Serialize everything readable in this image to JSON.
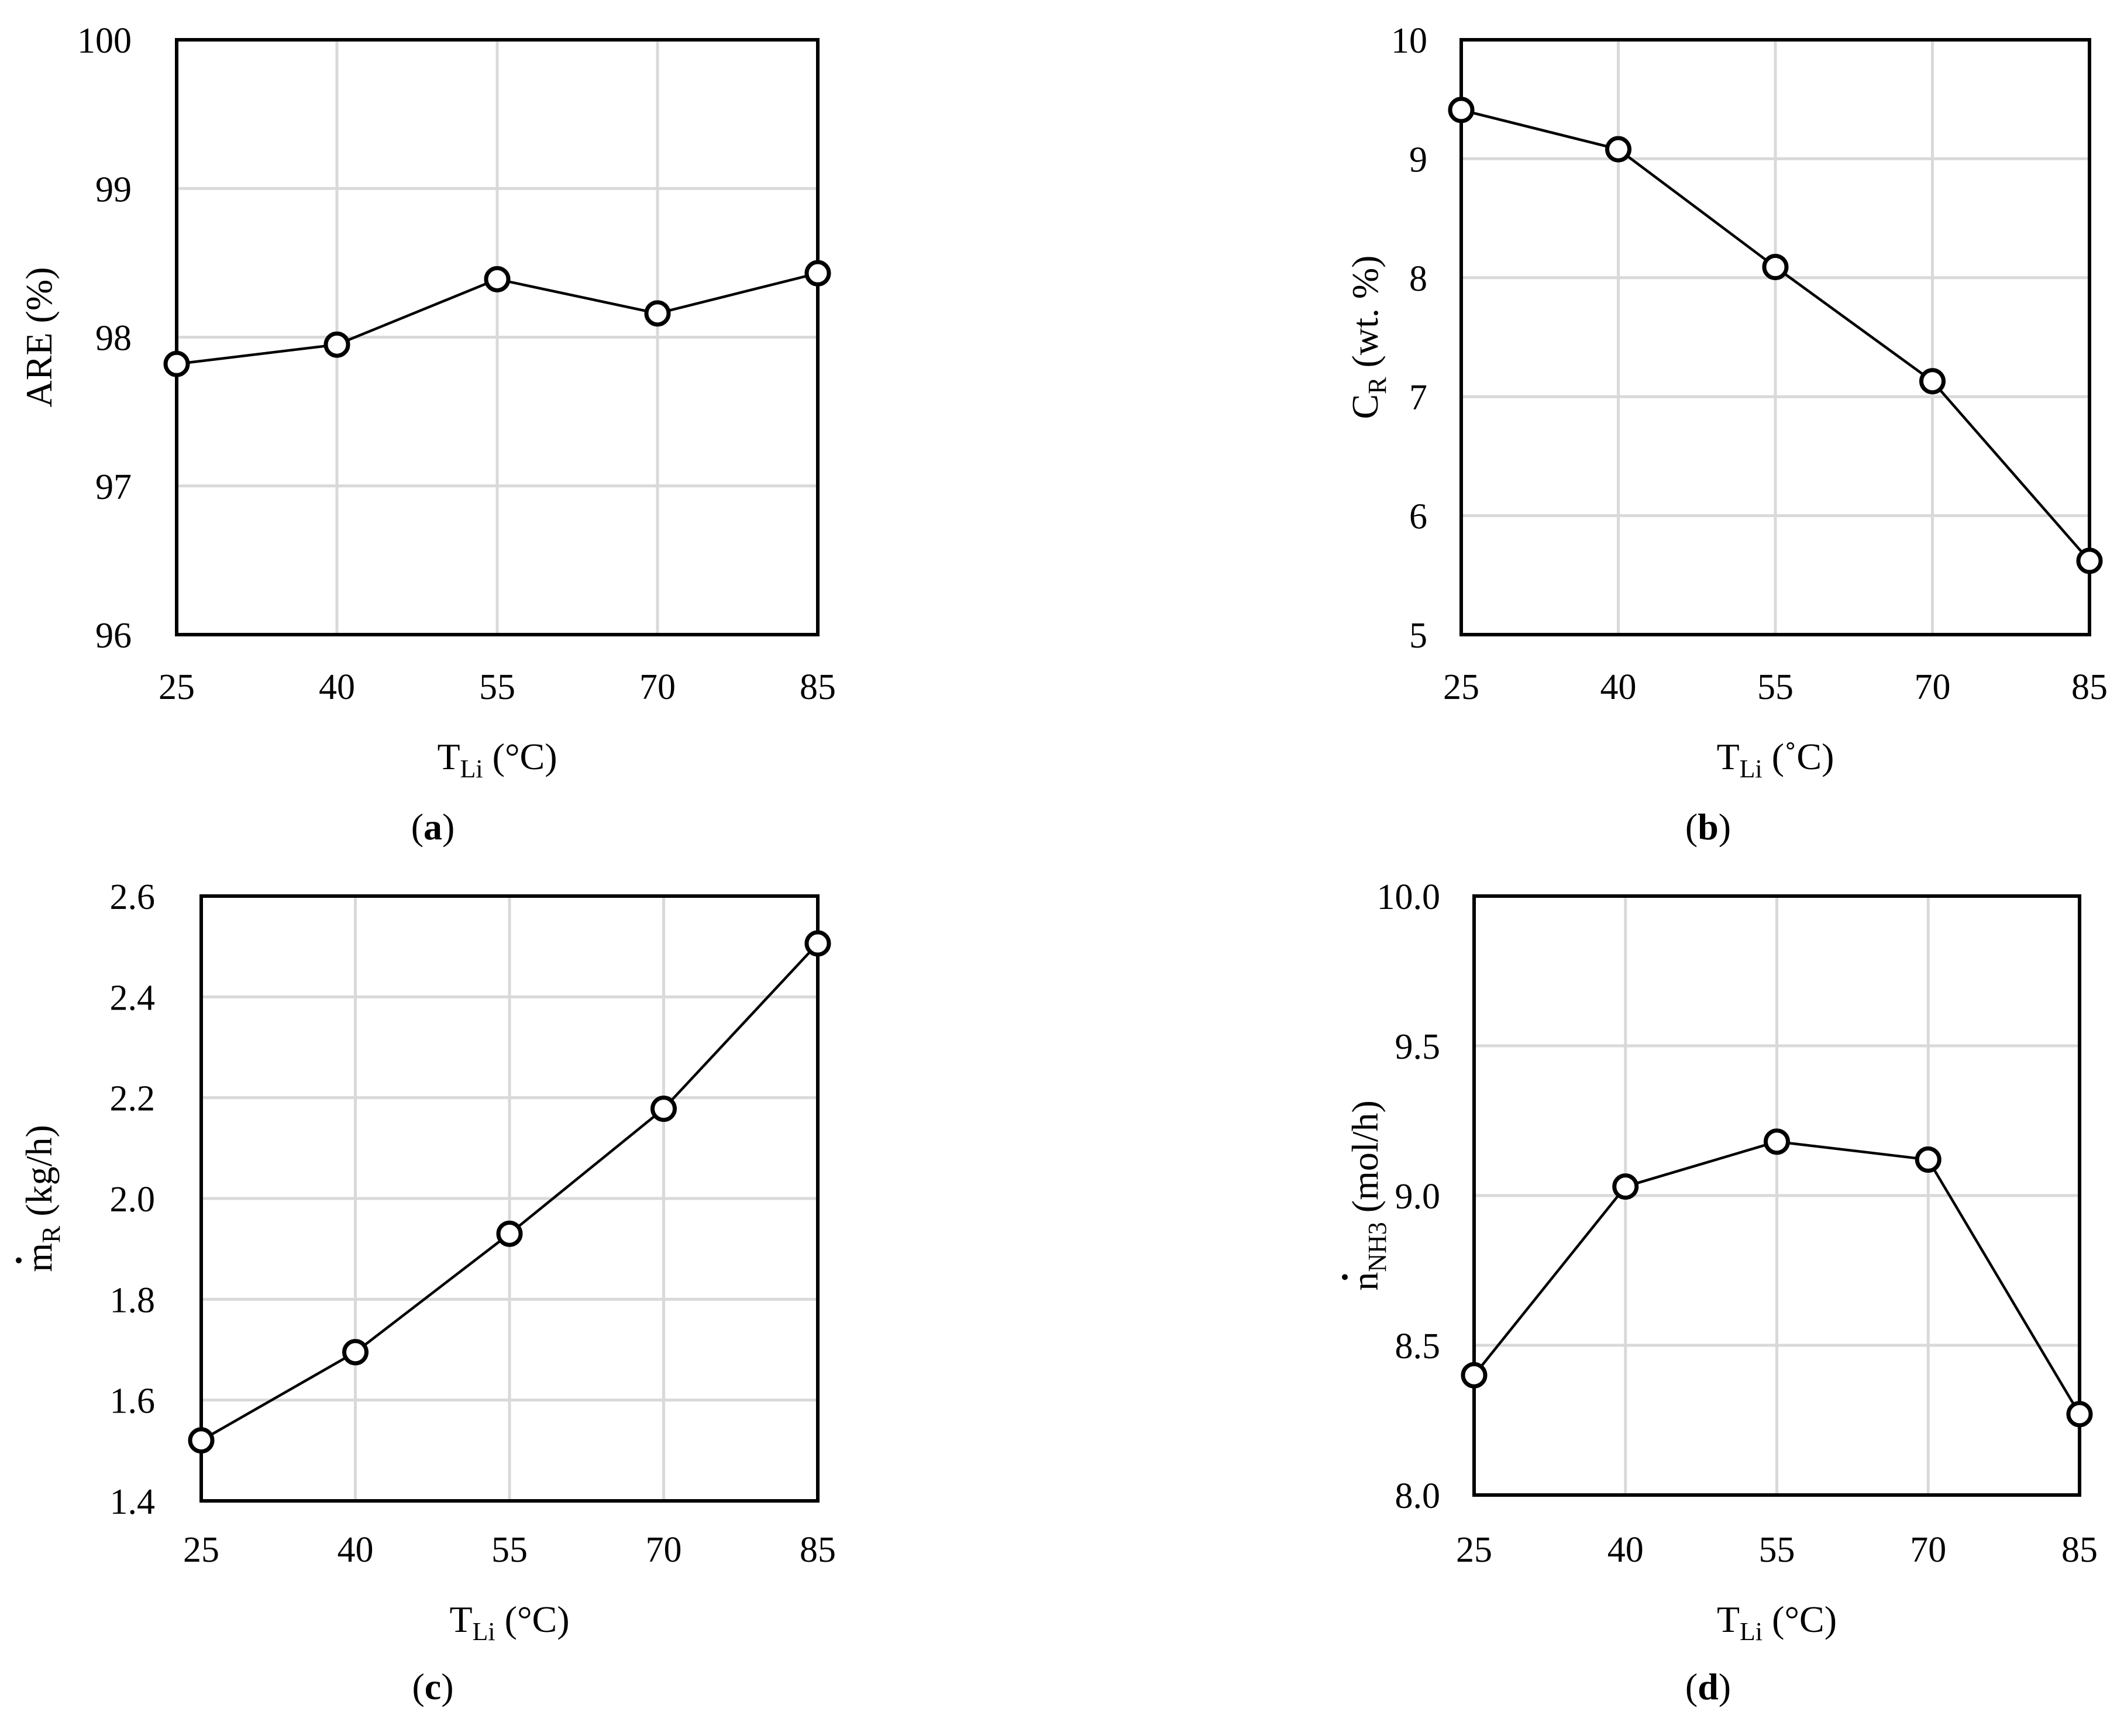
{
  "chart_data": [
    {
      "type": "line",
      "panel_label": "a",
      "x": [
        "25",
        "40",
        "55",
        "70",
        "85"
      ],
      "values": [
        97.82,
        97.95,
        98.39,
        98.16,
        98.43
      ],
      "ylim": [
        96,
        100
      ],
      "yticks": [
        "96",
        "97",
        "98",
        "99",
        "100"
      ],
      "ylabel": {
        "main": "ARE (%)",
        "sub": "",
        "suffix": "",
        "dot": false
      },
      "xlabel": {
        "main": "T",
        "sub": "Li",
        "suffix": " (°C)"
      },
      "grid": true,
      "marker": "open-circle"
    },
    {
      "type": "line",
      "panel_label": "b",
      "x": [
        "25",
        "40",
        "55",
        "70",
        "85"
      ],
      "values": [
        9.41,
        9.08,
        8.09,
        7.13,
        5.62
      ],
      "ylim": [
        5,
        10
      ],
      "yticks": [
        "5",
        "6",
        "7",
        "8",
        "9",
        "10"
      ],
      "ylabel": {
        "main": "C",
        "sub": "R",
        "suffix": " (wt. %)",
        "dot": false
      },
      "xlabel": {
        "main": "T",
        "sub": "Li",
        "suffix": " (˚C)"
      },
      "grid": true,
      "marker": "open-circle"
    },
    {
      "type": "line",
      "panel_label": "c",
      "x": [
        "25",
        "40",
        "55",
        "70",
        "85"
      ],
      "values": [
        1.52,
        1.695,
        1.93,
        2.178,
        2.506
      ],
      "ylim": [
        1.4,
        2.6
      ],
      "yticks": [
        "1.4",
        "1.6",
        "1.8",
        "2.0",
        "2.2",
        "2.4",
        "2.6"
      ],
      "ylabel": {
        "main": "m",
        "sub": "R",
        "suffix": " (kg/h)",
        "dot": true
      },
      "xlabel": {
        "main": "T",
        "sub": "Li",
        "suffix": " (°C)"
      },
      "grid": true,
      "marker": "open-circle"
    },
    {
      "type": "line",
      "panel_label": "d",
      "x": [
        "25",
        "40",
        "55",
        "70",
        "85"
      ],
      "values": [
        8.4,
        9.03,
        9.18,
        9.12,
        8.27
      ],
      "ylim": [
        8.0,
        10.0
      ],
      "yticks": [
        "8.0",
        "8.5",
        "9.0",
        "9.5",
        "10.0"
      ],
      "ylabel": {
        "main": "n",
        "sub": "NH3",
        "suffix": " (mol/h)",
        "dot": true
      },
      "xlabel": {
        "main": "T",
        "sub": "Li",
        "suffix": " (°C)"
      },
      "grid": true,
      "marker": "open-circle"
    }
  ]
}
